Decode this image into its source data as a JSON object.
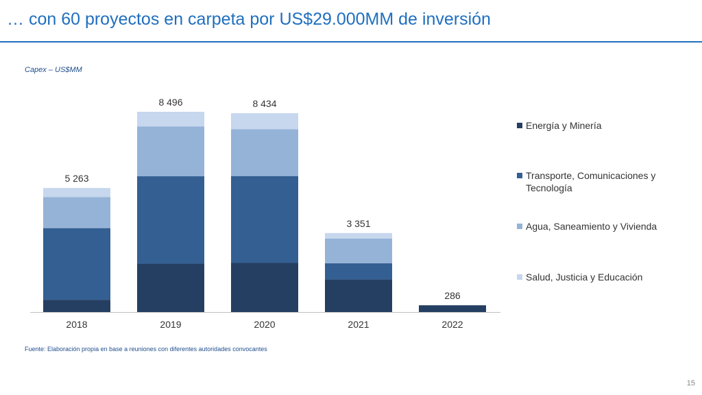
{
  "slide": {
    "title": "… con 60 proyectos en carpeta por US$29.000MM de inversión",
    "source": "Fuente: Elaboración propia en base a reuniones con diferentes autoridades convocantes",
    "page_number": "15"
  },
  "colors": {
    "title": "#1f6fbf",
    "energia": "#243f61",
    "transporte": "#345f92",
    "agua": "#95b3d7",
    "salud": "#c6d7ee"
  },
  "chart_data": {
    "type": "bar",
    "stacked": true,
    "title": "",
    "subtitle": "Capex – US$MM",
    "xlabel": "",
    "ylabel": "",
    "ylim": [
      0,
      8800
    ],
    "grid": false,
    "legend_position": "right",
    "categories": [
      "2018",
      "2019",
      "2020",
      "2021",
      "2022"
    ],
    "totals": [
      5263,
      8496,
      8434,
      3351,
      286
    ],
    "total_labels": [
      "5 263",
      "8 496",
      "8 434",
      "3 351",
      "286"
    ],
    "series": [
      {
        "name": "Energía y Minería",
        "values": [
          520,
          2050,
          2080,
          1380,
          286
        ]
      },
      {
        "name": "Transporte, Comunicaciones y Tecnología",
        "values": [
          3040,
          3710,
          3690,
          690,
          0
        ]
      },
      {
        "name": "Agua, Saneamiento y Vivienda",
        "values": [
          1320,
          2110,
          1990,
          1050,
          0
        ]
      },
      {
        "name": "Salud, Justicia y Educación",
        "values": [
          383,
          626,
          674,
          231,
          0
        ]
      }
    ]
  }
}
